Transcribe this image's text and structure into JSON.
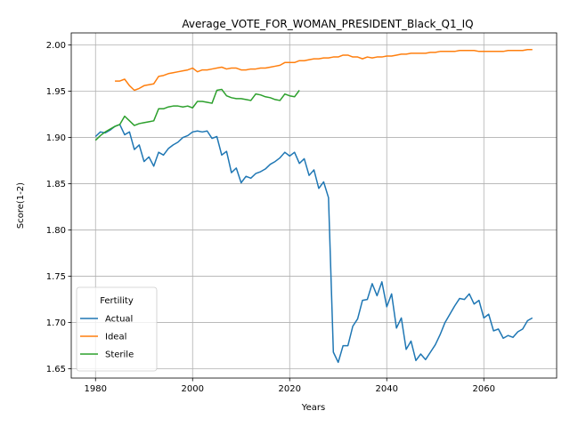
{
  "chart_data": {
    "type": "line",
    "title": "Average_VOTE_FOR_WOMAN_PRESIDENT_Black_Q1_IQ",
    "xlabel": "Years",
    "ylabel": "Score(1-2)",
    "xlim": [
      1975,
      2075
    ],
    "ylim": [
      1.64,
      2.013
    ],
    "x_ticks": [
      1980,
      2000,
      2020,
      2040,
      2060
    ],
    "y_ticks": [
      1.65,
      1.7,
      1.75,
      1.8,
      1.85,
      1.9,
      1.95,
      2.0
    ],
    "x_tick_labels": [
      "1980",
      "2000",
      "2020",
      "2040",
      "2060"
    ],
    "y_tick_labels": [
      "1.65",
      "1.70",
      "1.75",
      "1.80",
      "1.85",
      "1.90",
      "1.95",
      "2.00"
    ],
    "grid": true,
    "legend": {
      "title": "Fertility",
      "placement": "lower-left"
    },
    "series": [
      {
        "name": "Actual",
        "color": "#1f77b4",
        "x": [
          1980,
          1981,
          1982,
          1983,
          1984,
          1985,
          1986,
          1987,
          1988,
          1989,
          1990,
          1991,
          1992,
          1993,
          1994,
          1995,
          1996,
          1997,
          1998,
          1999,
          2000,
          2001,
          2002,
          2003,
          2004,
          2005,
          2006,
          2007,
          2008,
          2009,
          2010,
          2011,
          2012,
          2013,
          2014,
          2015,
          2016,
          2017,
          2018,
          2019,
          2020,
          2021,
          2022,
          2023,
          2024,
          2025,
          2026,
          2027,
          2028,
          2029,
          2030,
          2031,
          2032,
          2033,
          2034,
          2035,
          2036,
          2037,
          2038,
          2039,
          2040,
          2041,
          2042,
          2043,
          2044,
          2045,
          2046,
          2047,
          2048,
          2049,
          2050,
          2051,
          2052,
          2053,
          2054,
          2055,
          2056,
          2057,
          2058,
          2059,
          2060,
          2061,
          2062,
          2063,
          2064,
          2065,
          2066,
          2067,
          2068,
          2069,
          2070
        ],
        "values": [
          1.901,
          1.906,
          1.905,
          1.908,
          1.912,
          1.914,
          1.903,
          1.906,
          1.887,
          1.892,
          1.874,
          1.879,
          1.869,
          1.884,
          1.881,
          1.888,
          1.892,
          1.895,
          1.9,
          1.902,
          1.906,
          1.907,
          1.906,
          1.907,
          1.899,
          1.901,
          1.881,
          1.885,
          1.862,
          1.867,
          1.851,
          1.858,
          1.856,
          1.861,
          1.863,
          1.866,
          1.871,
          1.874,
          1.878,
          1.884,
          1.88,
          1.884,
          1.872,
          1.877,
          1.859,
          1.865,
          1.845,
          1.852,
          1.835,
          1.668,
          1.657,
          1.675,
          1.675,
          1.696,
          1.704,
          1.724,
          1.725,
          1.742,
          1.729,
          1.744,
          1.717,
          1.731,
          1.694,
          1.705,
          1.671,
          1.68,
          1.659,
          1.666,
          1.66,
          1.668,
          1.676,
          1.687,
          1.7,
          1.709,
          1.718,
          1.726,
          1.725,
          1.731,
          1.72,
          1.724,
          1.705,
          1.709,
          1.691,
          1.693,
          1.683,
          1.686,
          1.684,
          1.69,
          1.693,
          1.702,
          1.705
        ]
      },
      {
        "name": "Ideal",
        "color": "#ff7f0e",
        "x": [
          1984,
          1985,
          1986,
          1987,
          1988,
          1989,
          1990,
          1991,
          1992,
          1993,
          1994,
          1995,
          1996,
          1997,
          1998,
          1999,
          2000,
          2001,
          2002,
          2003,
          2004,
          2005,
          2006,
          2007,
          2008,
          2009,
          2010,
          2011,
          2012,
          2013,
          2014,
          2015,
          2016,
          2017,
          2018,
          2019,
          2020,
          2021,
          2022,
          2023,
          2024,
          2025,
          2026,
          2027,
          2028,
          2029,
          2030,
          2031,
          2032,
          2033,
          2034,
          2035,
          2036,
          2037,
          2038,
          2039,
          2040,
          2041,
          2042,
          2043,
          2044,
          2045,
          2046,
          2047,
          2048,
          2049,
          2050,
          2051,
          2052,
          2053,
          2054,
          2055,
          2056,
          2057,
          2058,
          2059,
          2060,
          2061,
          2062,
          2063,
          2064,
          2065,
          2066,
          2067,
          2068,
          2069,
          2070
        ],
        "values": [
          1.961,
          1.961,
          1.963,
          1.956,
          1.951,
          1.953,
          1.956,
          1.957,
          1.958,
          1.966,
          1.967,
          1.969,
          1.97,
          1.971,
          1.972,
          1.973,
          1.975,
          1.971,
          1.973,
          1.973,
          1.974,
          1.975,
          1.976,
          1.974,
          1.975,
          1.975,
          1.973,
          1.973,
          1.974,
          1.974,
          1.975,
          1.975,
          1.976,
          1.977,
          1.978,
          1.981,
          1.981,
          1.981,
          1.983,
          1.983,
          1.984,
          1.985,
          1.985,
          1.986,
          1.986,
          1.987,
          1.987,
          1.989,
          1.989,
          1.987,
          1.987,
          1.985,
          1.987,
          1.986,
          1.987,
          1.987,
          1.988,
          1.988,
          1.989,
          1.99,
          1.99,
          1.991,
          1.991,
          1.991,
          1.991,
          1.992,
          1.992,
          1.993,
          1.993,
          1.993,
          1.993,
          1.994,
          1.994,
          1.994,
          1.994,
          1.993,
          1.993,
          1.993,
          1.993,
          1.993,
          1.993,
          1.994,
          1.994,
          1.994,
          1.994,
          1.995,
          1.995
        ]
      },
      {
        "name": "Sterile",
        "color": "#2ca02c",
        "x": [
          1980,
          1981,
          1982,
          1983,
          1984,
          1985,
          1986,
          1987,
          1988,
          1989,
          1990,
          1991,
          1992,
          1993,
          1994,
          1995,
          1996,
          1997,
          1998,
          1999,
          2000,
          2001,
          2002,
          2003,
          2004,
          2005,
          2006,
          2007,
          2008,
          2009,
          2010,
          2011,
          2012,
          2013,
          2014,
          2015,
          2016,
          2017,
          2018,
          2019,
          2020,
          2021,
          2022
        ],
        "values": [
          1.897,
          1.902,
          1.906,
          1.909,
          1.912,
          1.914,
          1.923,
          1.918,
          1.913,
          1.915,
          1.916,
          1.917,
          1.918,
          1.931,
          1.931,
          1.933,
          1.934,
          1.934,
          1.933,
          1.934,
          1.932,
          1.939,
          1.939,
          1.938,
          1.937,
          1.951,
          1.952,
          1.945,
          1.943,
          1.942,
          1.942,
          1.941,
          1.94,
          1.947,
          1.946,
          1.944,
          1.943,
          1.941,
          1.94,
          1.947,
          1.945,
          1.944,
          1.951
        ]
      }
    ]
  }
}
